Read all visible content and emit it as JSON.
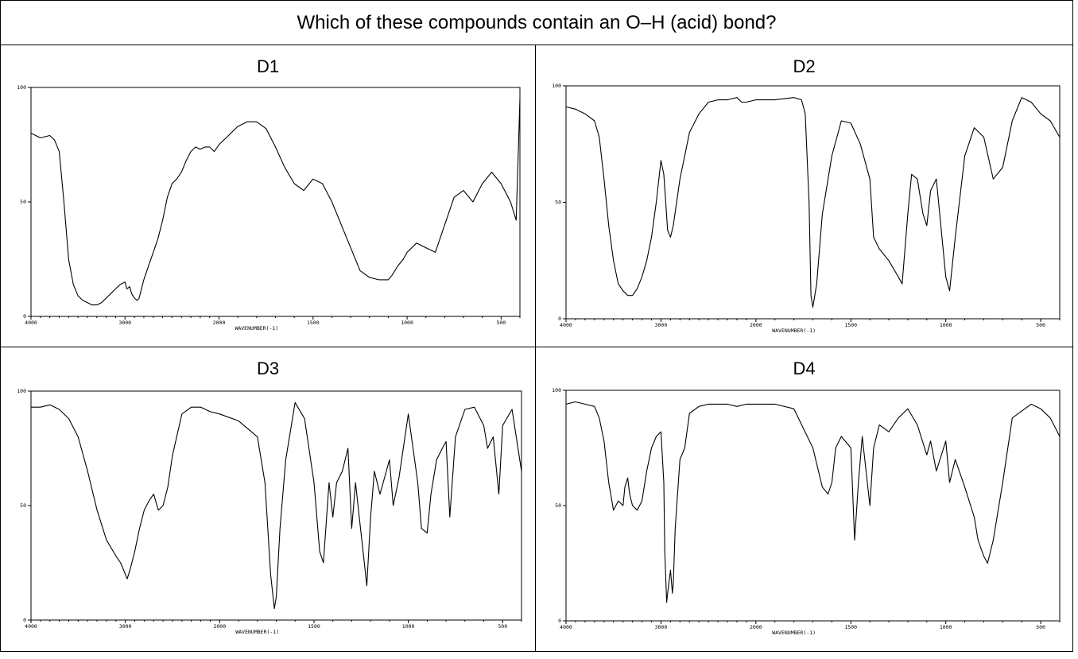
{
  "question": "Which of these compounds contain an O–H (acid) bond?",
  "chart_data": [
    {
      "type": "line",
      "title": "D1",
      "xlabel": "WAVENUMBER(-1)",
      "ylabel": "",
      "xlim": [
        4000,
        400
      ],
      "ylim": [
        0,
        100
      ],
      "x_ticks": [
        "4000",
        "3000",
        "2000",
        "1500",
        "1000",
        "500"
      ],
      "y_ticks": [
        "100",
        "50",
        "0"
      ],
      "series": [
        {
          "name": "",
          "x": [
            4000,
            3950,
            3900,
            3800,
            3750,
            3700,
            3650,
            3600,
            3550,
            3500,
            3450,
            3400,
            3350,
            3300,
            3250,
            3200,
            3150,
            3100,
            3050,
            3000,
            2980,
            2950,
            2930,
            2900,
            2870,
            2850,
            2800,
            2750,
            2700,
            2650,
            2600,
            2550,
            2500,
            2450,
            2400,
            2350,
            2300,
            2250,
            2200,
            2150,
            2100,
            2050,
            2000,
            1950,
            1900,
            1850,
            1800,
            1750,
            1700,
            1650,
            1600,
            1550,
            1500,
            1450,
            1400,
            1350,
            1300,
            1250,
            1200,
            1150,
            1100,
            1080,
            1050,
            1020,
            1000,
            950,
            900,
            850,
            800,
            750,
            700,
            650,
            600,
            550,
            500,
            450,
            420,
            400
          ],
          "y": [
            80,
            79,
            78,
            79,
            77,
            72,
            50,
            25,
            14,
            9,
            7,
            6,
            5,
            5,
            6,
            8,
            10,
            12,
            14,
            15,
            12,
            13,
            10,
            8,
            7,
            8,
            16,
            22,
            28,
            34,
            42,
            52,
            58,
            60,
            63,
            68,
            72,
            74,
            73,
            74,
            74,
            72,
            75,
            79,
            83,
            85,
            85,
            82,
            74,
            65,
            58,
            55,
            60,
            58,
            50,
            40,
            30,
            20,
            17,
            16,
            16,
            18,
            22,
            25,
            28,
            32,
            30,
            28,
            40,
            52,
            55,
            50,
            58,
            63,
            58,
            50,
            42,
            95
          ]
        }
      ]
    },
    {
      "type": "line",
      "title": "D2",
      "xlabel": "WAVENUMBER(-1)",
      "ylabel": "",
      "xlim": [
        4000,
        400
      ],
      "ylim": [
        0,
        100
      ],
      "x_ticks": [
        "4000",
        "3000",
        "2000",
        "1500",
        "1000",
        "500"
      ],
      "y_ticks": [
        "100",
        "50",
        "0"
      ],
      "series": [
        {
          "name": "",
          "x": [
            4000,
            3900,
            3800,
            3700,
            3650,
            3600,
            3550,
            3500,
            3450,
            3400,
            3350,
            3300,
            3250,
            3200,
            3150,
            3100,
            3050,
            3000,
            2970,
            2950,
            2930,
            2900,
            2870,
            2800,
            2700,
            2600,
            2500,
            2400,
            2300,
            2200,
            2150,
            2100,
            2000,
            1900,
            1800,
            1760,
            1740,
            1720,
            1710,
            1700,
            1680,
            1650,
            1600,
            1550,
            1500,
            1450,
            1400,
            1380,
            1350,
            1300,
            1250,
            1230,
            1200,
            1180,
            1150,
            1120,
            1100,
            1080,
            1050,
            1000,
            980,
            950,
            900,
            850,
            800,
            750,
            700,
            650,
            600,
            550,
            500,
            450,
            400
          ],
          "y": [
            91,
            90,
            88,
            85,
            78,
            60,
            40,
            25,
            15,
            12,
            10,
            10,
            13,
            18,
            25,
            35,
            50,
            68,
            62,
            50,
            38,
            35,
            40,
            60,
            80,
            88,
            93,
            94,
            94,
            95,
            93,
            93,
            94,
            94,
            95,
            94,
            88,
            50,
            10,
            5,
            15,
            45,
            70,
            85,
            84,
            75,
            60,
            35,
            30,
            25,
            18,
            15,
            45,
            62,
            60,
            45,
            40,
            55,
            60,
            18,
            12,
            35,
            70,
            82,
            78,
            60,
            65,
            85,
            95,
            93,
            88,
            85,
            78
          ]
        }
      ]
    },
    {
      "type": "line",
      "title": "D3",
      "xlabel": "WAVENUMBER(-1)",
      "ylabel": "",
      "xlim": [
        4000,
        400
      ],
      "ylim": [
        0,
        100
      ],
      "x_ticks": [
        "4000",
        "3000",
        "2000",
        "1500",
        "1000",
        "500"
      ],
      "y_ticks": [
        "100",
        "50",
        "0"
      ],
      "series": [
        {
          "name": "",
          "x": [
            4000,
            3900,
            3800,
            3700,
            3600,
            3500,
            3400,
            3300,
            3200,
            3100,
            3050,
            3000,
            2980,
            2950,
            2900,
            2850,
            2800,
            2750,
            2700,
            2650,
            2600,
            2550,
            2500,
            2400,
            2300,
            2200,
            2100,
            2000,
            1900,
            1800,
            1760,
            1730,
            1710,
            1700,
            1680,
            1650,
            1600,
            1550,
            1500,
            1470,
            1450,
            1420,
            1400,
            1380,
            1350,
            1320,
            1300,
            1280,
            1260,
            1240,
            1220,
            1200,
            1180,
            1150,
            1100,
            1080,
            1050,
            1000,
            950,
            930,
            900,
            880,
            850,
            820,
            800,
            780,
            750,
            700,
            650,
            600,
            580,
            550,
            520,
            500,
            450,
            400
          ],
          "y": [
            93,
            93,
            94,
            92,
            88,
            80,
            65,
            48,
            35,
            28,
            25,
            20,
            18,
            22,
            30,
            40,
            48,
            52,
            55,
            48,
            50,
            58,
            72,
            90,
            93,
            93,
            91,
            90,
            87,
            80,
            60,
            20,
            5,
            10,
            40,
            70,
            95,
            88,
            60,
            30,
            25,
            60,
            45,
            60,
            65,
            75,
            40,
            60,
            45,
            30,
            15,
            45,
            65,
            55,
            70,
            50,
            62,
            90,
            60,
            40,
            38,
            55,
            70,
            75,
            78,
            45,
            80,
            92,
            93,
            85,
            75,
            80,
            55,
            85,
            92,
            65
          ]
        }
      ]
    },
    {
      "type": "line",
      "title": "D4",
      "xlabel": "WAVENUMBER(-1)",
      "ylabel": "",
      "xlim": [
        4000,
        400
      ],
      "ylim": [
        0,
        100
      ],
      "x_ticks": [
        "4000",
        "3000",
        "2000",
        "1500",
        "1000",
        "500"
      ],
      "y_ticks": [
        "100",
        "50",
        "0"
      ],
      "series": [
        {
          "name": "",
          "x": [
            4000,
            3900,
            3800,
            3700,
            3650,
            3600,
            3550,
            3500,
            3450,
            3400,
            3380,
            3350,
            3330,
            3300,
            3250,
            3200,
            3150,
            3100,
            3050,
            3000,
            2970,
            2960,
            2940,
            2930,
            2900,
            2880,
            2870,
            2850,
            2800,
            2750,
            2700,
            2600,
            2500,
            2400,
            2300,
            2200,
            2100,
            2000,
            1900,
            1800,
            1700,
            1650,
            1620,
            1600,
            1580,
            1550,
            1500,
            1480,
            1460,
            1440,
            1400,
            1380,
            1350,
            1300,
            1250,
            1200,
            1150,
            1100,
            1080,
            1050,
            1000,
            980,
            950,
            900,
            850,
            830,
            800,
            780,
            750,
            700,
            650,
            600,
            550,
            500,
            450,
            400
          ],
          "y": [
            94,
            95,
            94,
            93,
            88,
            78,
            60,
            48,
            52,
            50,
            58,
            62,
            55,
            50,
            48,
            52,
            65,
            75,
            80,
            82,
            60,
            30,
            8,
            12,
            22,
            12,
            16,
            40,
            70,
            75,
            90,
            93,
            94,
            94,
            94,
            93,
            94,
            94,
            94,
            92,
            75,
            58,
            55,
            60,
            75,
            80,
            75,
            35,
            60,
            80,
            50,
            75,
            85,
            82,
            88,
            92,
            85,
            72,
            78,
            65,
            78,
            60,
            70,
            58,
            45,
            35,
            28,
            25,
            35,
            60,
            88,
            91,
            94,
            92,
            88,
            80
          ]
        }
      ]
    }
  ]
}
